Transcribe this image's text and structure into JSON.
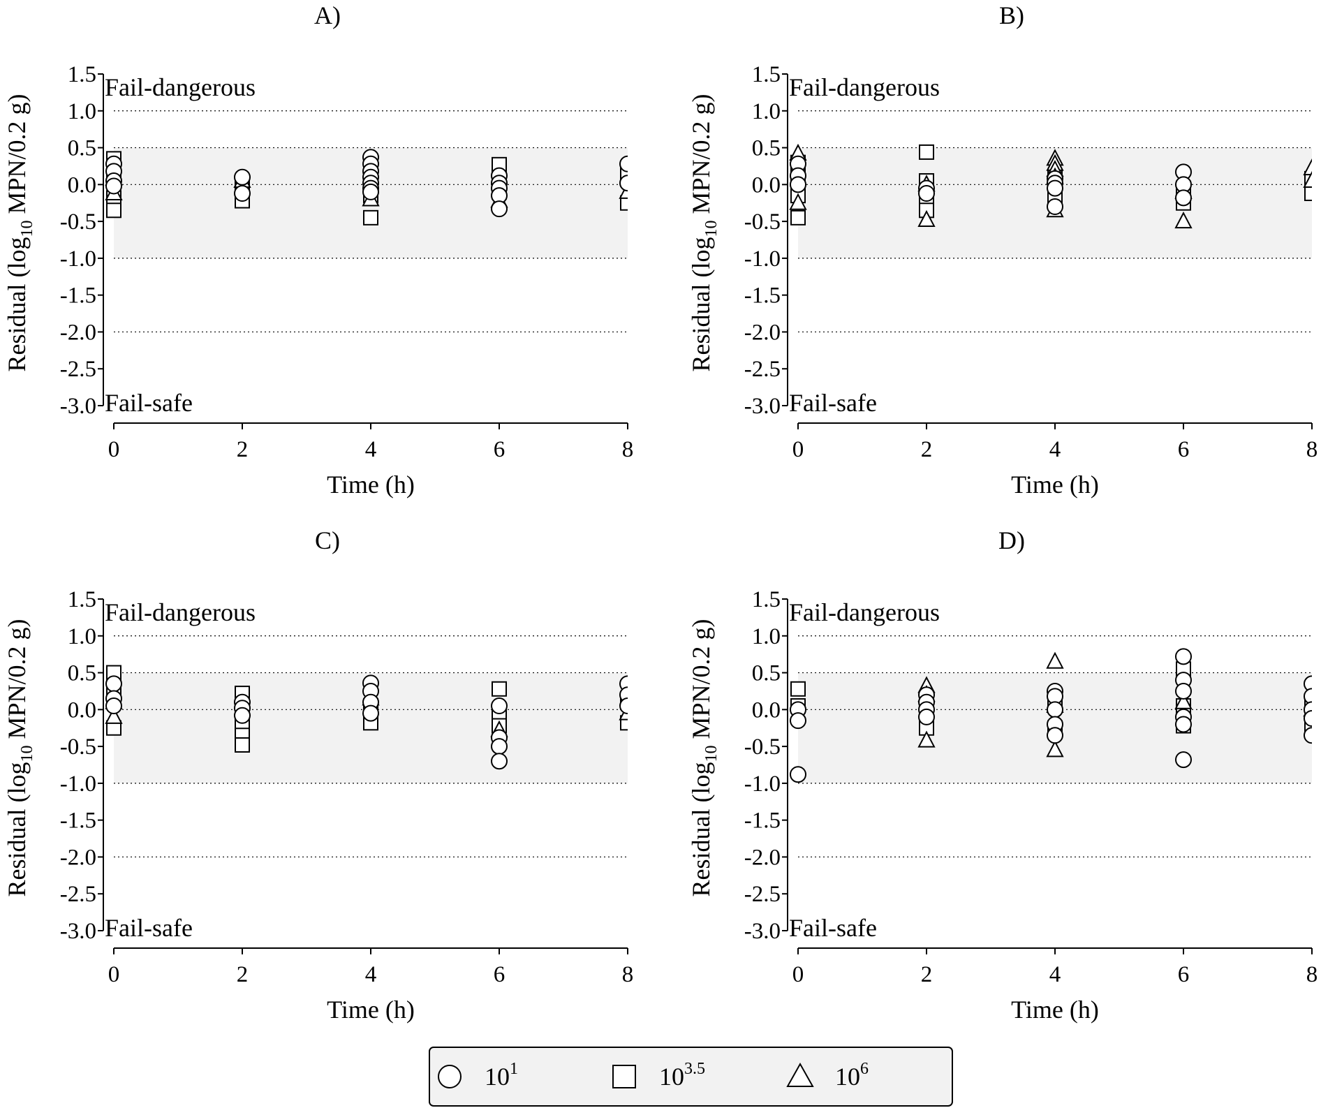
{
  "chart_data": [
    {
      "type": "scatter",
      "title": "A)",
      "xlabel": "Time (h)",
      "ylabel": "Residual (log10 MPN/0.2 g)",
      "xlim": [
        0,
        8
      ],
      "ylim": [
        -3.0,
        1.5
      ],
      "xticks": [
        "0",
        "2",
        "4",
        "6",
        "8"
      ],
      "yticks": [
        "1.5",
        "1.0",
        "0.5",
        "0.0",
        "-0.5",
        "-1.0",
        "-1.5",
        "-2.0",
        "-2.5",
        "-3.0"
      ],
      "acceptable_band": [
        -1.0,
        0.5
      ],
      "reference_lines": [
        1.0,
        0.5,
        0.0,
        -1.0,
        -2.0
      ],
      "upper_label": "Fail-dangerous",
      "lower_label": "Fail-safe",
      "series": [
        {
          "name": "10^1",
          "marker": "circle",
          "points": [
            [
              0,
              0.28
            ],
            [
              0,
              0.18
            ],
            [
              0,
              0.05
            ],
            [
              0,
              -0.02
            ],
            [
              2,
              0.1
            ],
            [
              2,
              -0.12
            ],
            [
              4,
              0.37
            ],
            [
              4,
              0.28
            ],
            [
              4,
              0.18
            ],
            [
              4,
              0.1
            ],
            [
              4,
              0.02
            ],
            [
              4,
              -0.05
            ],
            [
              4,
              -0.1
            ],
            [
              6,
              0.12
            ],
            [
              6,
              0.02
            ],
            [
              6,
              -0.05
            ],
            [
              6,
              -0.15
            ],
            [
              6,
              -0.33
            ],
            [
              8,
              0.28
            ],
            [
              8,
              0.02
            ]
          ]
        },
        {
          "name": "10^3.5",
          "marker": "square",
          "points": [
            [
              0,
              0.35
            ],
            [
              0,
              0.22
            ],
            [
              0,
              0.1
            ],
            [
              0,
              -0.18
            ],
            [
              0,
              -0.35
            ],
            [
              2,
              -0.05
            ],
            [
              2,
              -0.22
            ],
            [
              4,
              0.05
            ],
            [
              4,
              -0.15
            ],
            [
              4,
              -0.45
            ],
            [
              6,
              0.27
            ],
            [
              6,
              0.0
            ],
            [
              6,
              -0.1
            ],
            [
              8,
              0.15
            ],
            [
              8,
              -0.25
            ]
          ]
        },
        {
          "name": "10^6",
          "marker": "triangle",
          "points": [
            [
              0,
              0.08
            ],
            [
              0,
              -0.12
            ],
            [
              2,
              0.05
            ],
            [
              4,
              -0.2
            ],
            [
              6,
              -0.22
            ],
            [
              8,
              -0.1
            ]
          ]
        }
      ]
    },
    {
      "type": "scatter",
      "title": "B)",
      "xlabel": "Time (h)",
      "ylabel": "Residual (log10 MPN/0.2 g)",
      "xlim": [
        0,
        8
      ],
      "ylim": [
        -3.0,
        1.5
      ],
      "xticks": [
        "0",
        "2",
        "4",
        "6",
        "8"
      ],
      "yticks": [
        "1.5",
        "1.0",
        "0.5",
        "0.0",
        "-0.5",
        "-1.0",
        "-1.5",
        "-2.0",
        "-2.5",
        "-3.0"
      ],
      "acceptable_band": [
        -1.0,
        0.5
      ],
      "reference_lines": [
        1.0,
        0.5,
        0.0,
        -1.0,
        -2.0
      ],
      "upper_label": "Fail-dangerous",
      "lower_label": "Fail-safe",
      "series": [
        {
          "name": "10^1",
          "marker": "circle",
          "points": [
            [
              0,
              0.28
            ],
            [
              0,
              0.12
            ],
            [
              0,
              0.0
            ],
            [
              2,
              -0.05
            ],
            [
              2,
              -0.12
            ],
            [
              4,
              0.08
            ],
            [
              4,
              0.02
            ],
            [
              4,
              -0.05
            ],
            [
              4,
              -0.3
            ],
            [
              6,
              0.17
            ],
            [
              6,
              0.0
            ],
            [
              6,
              -0.18
            ]
          ]
        },
        {
          "name": "10^3.5",
          "marker": "square",
          "points": [
            [
              0,
              0.3
            ],
            [
              0,
              0.15
            ],
            [
              0,
              -0.15
            ],
            [
              0,
              -0.45
            ],
            [
              2,
              0.44
            ],
            [
              2,
              0.05
            ],
            [
              2,
              -0.2
            ],
            [
              2,
              -0.35
            ],
            [
              4,
              0.1
            ],
            [
              4,
              -0.15
            ],
            [
              6,
              -0.05
            ],
            [
              6,
              -0.25
            ],
            [
              8,
              0.08
            ],
            [
              8,
              -0.12
            ]
          ]
        },
        {
          "name": "10^6",
          "marker": "triangle",
          "points": [
            [
              0,
              0.42
            ],
            [
              0,
              -0.25
            ],
            [
              2,
              0.0
            ],
            [
              2,
              -0.48
            ],
            [
              4,
              0.35
            ],
            [
              4,
              0.28
            ],
            [
              4,
              0.2
            ],
            [
              4,
              0.1
            ],
            [
              4,
              -0.35
            ],
            [
              6,
              -0.1
            ],
            [
              6,
              -0.5
            ],
            [
              8,
              0.22
            ],
            [
              8,
              0.05
            ]
          ]
        }
      ]
    },
    {
      "type": "scatter",
      "title": "C)",
      "xlabel": "Time (h)",
      "ylabel": "Residual (log10 MPN/0.2 g)",
      "xlim": [
        0,
        8
      ],
      "ylim": [
        -3.0,
        1.5
      ],
      "xticks": [
        "0",
        "2",
        "4",
        "6",
        "8"
      ],
      "yticks": [
        "1.5",
        "1.0",
        "0.5",
        "0.0",
        "-0.5",
        "-1.0",
        "-1.5",
        "-2.0",
        "-2.5",
        "-3.0"
      ],
      "acceptable_band": [
        -1.0,
        0.5
      ],
      "reference_lines": [
        1.0,
        0.5,
        0.0,
        -1.0,
        -2.0
      ],
      "upper_label": "Fail-dangerous",
      "lower_label": "Fail-safe",
      "series": [
        {
          "name": "10^1",
          "marker": "circle",
          "points": [
            [
              0,
              0.35
            ],
            [
              0,
              0.15
            ],
            [
              0,
              0.05
            ],
            [
              2,
              0.1
            ],
            [
              2,
              0.02
            ],
            [
              2,
              -0.08
            ],
            [
              4,
              0.36
            ],
            [
              4,
              0.25
            ],
            [
              4,
              0.1
            ],
            [
              4,
              -0.05
            ],
            [
              6,
              0.05
            ],
            [
              6,
              -0.38
            ],
            [
              6,
              -0.5
            ],
            [
              6,
              -0.7
            ],
            [
              8,
              0.35
            ],
            [
              8,
              0.2
            ],
            [
              8,
              0.05
            ]
          ]
        },
        {
          "name": "10^3.5",
          "marker": "square",
          "points": [
            [
              0,
              0.5
            ],
            [
              0,
              0.2
            ],
            [
              0,
              -0.25
            ],
            [
              2,
              0.22
            ],
            [
              2,
              -0.2
            ],
            [
              2,
              -0.35
            ],
            [
              2,
              -0.48
            ],
            [
              4,
              0.05
            ],
            [
              4,
              -0.18
            ],
            [
              6,
              0.28
            ],
            [
              6,
              -0.1
            ],
            [
              6,
              -0.22
            ],
            [
              8,
              0.1
            ],
            [
              8,
              -0.18
            ]
          ]
        },
        {
          "name": "10^6",
          "marker": "triangle",
          "points": [
            [
              0,
              0.1
            ],
            [
              0,
              -0.1
            ],
            [
              4,
              0.15
            ],
            [
              6,
              -0.28
            ],
            [
              8,
              -0.05
            ]
          ]
        }
      ]
    },
    {
      "type": "scatter",
      "title": "D)",
      "xlabel": "Time (h)",
      "ylabel": "Residual (log10 MPN/0.2 g)",
      "xlim": [
        0,
        8
      ],
      "ylim": [
        -3.0,
        1.5
      ],
      "xticks": [
        "0",
        "2",
        "4",
        "6",
        "8"
      ],
      "yticks": [
        "1.5",
        "1.0",
        "0.5",
        "0.0",
        "-0.5",
        "-1.0",
        "-1.5",
        "-2.0",
        "-2.5",
        "-3.0"
      ],
      "acceptable_band": [
        -1.0,
        0.5
      ],
      "reference_lines": [
        1.0,
        0.5,
        0.0,
        -1.0,
        -2.0
      ],
      "upper_label": "Fail-dangerous",
      "lower_label": "Fail-safe",
      "series": [
        {
          "name": "10^1",
          "marker": "circle",
          "points": [
            [
              0,
              0.0
            ],
            [
              0,
              -0.15
            ],
            [
              0,
              -0.88
            ],
            [
              2,
              0.2
            ],
            [
              2,
              0.1
            ],
            [
              2,
              0.0
            ],
            [
              2,
              -0.1
            ],
            [
              4,
              0.25
            ],
            [
              4,
              0.18
            ],
            [
              4,
              0.0
            ],
            [
              4,
              -0.2
            ],
            [
              4,
              -0.35
            ],
            [
              6,
              0.72
            ],
            [
              6,
              0.4
            ],
            [
              6,
              0.25
            ],
            [
              6,
              -0.1
            ],
            [
              6,
              -0.2
            ],
            [
              6,
              -0.68
            ],
            [
              8,
              0.35
            ],
            [
              8,
              0.18
            ],
            [
              8,
              0.0
            ],
            [
              8,
              -0.12
            ],
            [
              8,
              -0.35
            ]
          ]
        },
        {
          "name": "10^3.5",
          "marker": "square",
          "points": [
            [
              0,
              0.28
            ],
            [
              0,
              0.05
            ],
            [
              2,
              -0.05
            ],
            [
              2,
              -0.25
            ],
            [
              4,
              0.1
            ],
            [
              4,
              -0.25
            ],
            [
              6,
              0.55
            ],
            [
              6,
              0.05
            ],
            [
              6,
              -0.22
            ],
            [
              8,
              0.05
            ],
            [
              8,
              -0.2
            ]
          ]
        },
        {
          "name": "10^6",
          "marker": "triangle",
          "points": [
            [
              2,
              0.32
            ],
            [
              2,
              0.2
            ],
            [
              2,
              -0.42
            ],
            [
              4,
              0.65
            ],
            [
              4,
              0.05
            ],
            [
              4,
              -0.55
            ],
            [
              6,
              0.1
            ],
            [
              8,
              0.0
            ]
          ]
        }
      ]
    }
  ],
  "legend": {
    "items": [
      {
        "marker": "circle",
        "base": "10",
        "exponent": "1"
      },
      {
        "marker": "square",
        "base": "10",
        "exponent": "3.5"
      },
      {
        "marker": "triangle",
        "base": "10",
        "exponent": "6"
      }
    ]
  }
}
